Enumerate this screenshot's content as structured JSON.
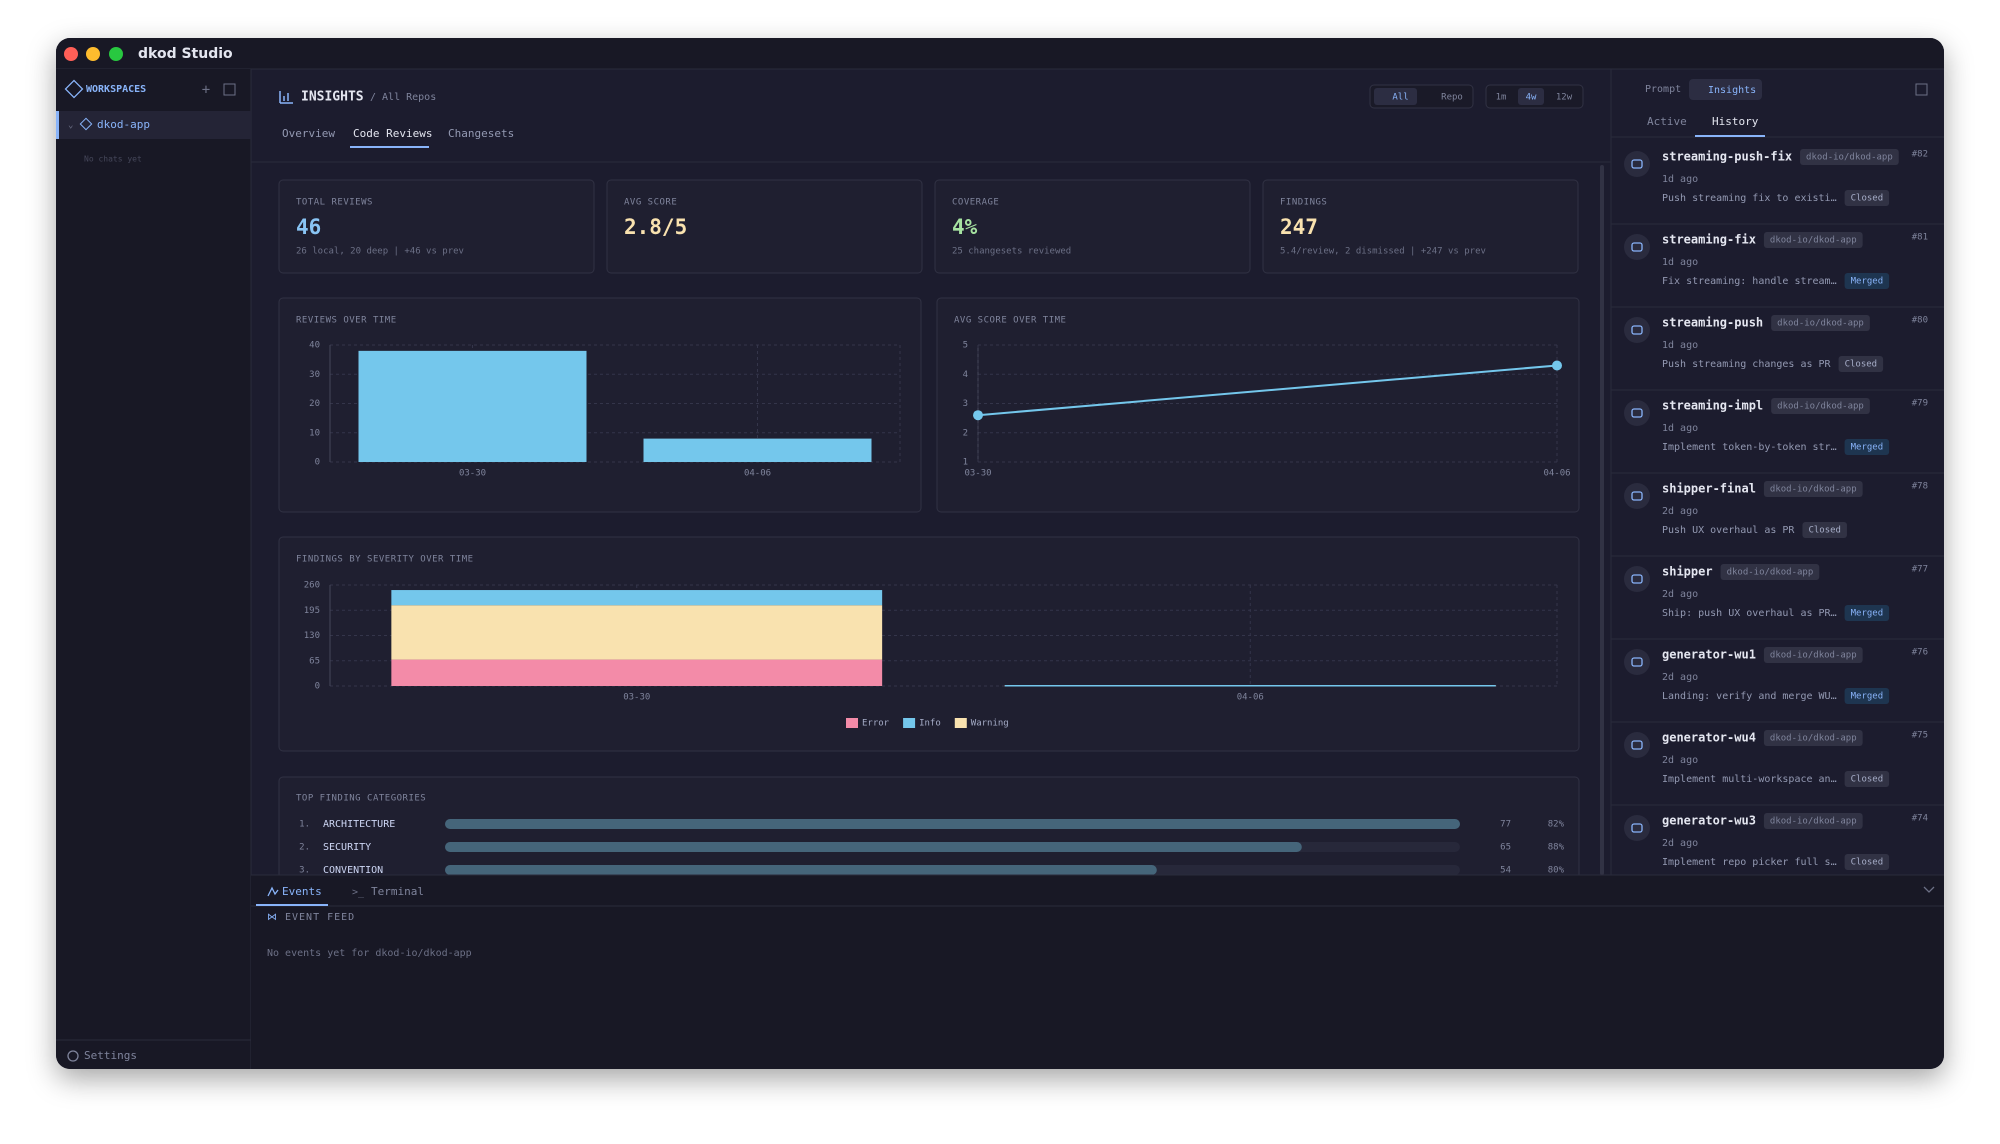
{
  "app": {
    "title": "dkod Studio"
  },
  "sidebar": {
    "section": "WORKSPACES",
    "workspace": "dkod-app",
    "empty": "No chats yet",
    "settings": "Settings"
  },
  "header": {
    "title": "INSIGHTS",
    "scope": "/ All Repos",
    "filters": [
      "All",
      "Repo"
    ],
    "ranges": [
      "1m",
      "4w",
      "12w"
    ],
    "tabs": [
      "Overview",
      "Code Reviews",
      "Changesets"
    ]
  },
  "stats": [
    {
      "label": "TOTAL REVIEWS",
      "value": 46,
      "detail": "26 local, 20 deep | +46 vs prev",
      "color": "#89c4f4"
    },
    {
      "label": "AVG SCORE",
      "value": "2.8/5",
      "detail": "",
      "color": "#f9e2af"
    },
    {
      "label": "COVERAGE",
      "value": "4%",
      "detail": "25 changesets reviewed",
      "color": "#a6e3a1"
    },
    {
      "label": "FINDINGS",
      "value": 247,
      "detail": "5.4/review, 2 dismissed | +247 vs prev",
      "color": "#f9e2af"
    }
  ],
  "charts": {
    "reviews": {
      "type": "bar",
      "title": "REVIEWS OVER TIME",
      "categories": [
        "03-30",
        "04-06"
      ],
      "values": [
        38,
        8
      ],
      "color": "#74c7ec",
      "ylim": [
        0,
        40
      ],
      "yticks": [
        0,
        10,
        20,
        30,
        40
      ]
    },
    "score": {
      "type": "line",
      "title": "AVG SCORE OVER TIME",
      "categories": [
        "03-30",
        "04-06"
      ],
      "values": [
        2.6,
        4.3
      ],
      "color": "#74c7ec",
      "ylim": [
        1,
        5
      ],
      "yticks": [
        1,
        2,
        3,
        4,
        5
      ]
    },
    "severity": {
      "type": "stacked_bar",
      "title": "FINDINGS BY SEVERITY OVER TIME",
      "categories": [
        "03-30",
        "04-06"
      ],
      "series": [
        {
          "name": "Error",
          "color": "#f38ba8",
          "values": [
            68,
            0
          ]
        },
        {
          "name": "Warning",
          "color": "#f9e2af",
          "values": [
            140,
            0
          ]
        },
        {
          "name": "Info",
          "color": "#74c7ec",
          "values": [
            39,
            0
          ]
        }
      ],
      "ylim": [
        0,
        260
      ],
      "yticks": [
        0,
        65,
        130,
        195,
        260
      ]
    },
    "top_categories": {
      "type": "hbar",
      "title": "TOP FINDING CATEGORIES",
      "color": "#45657a",
      "rows": [
        {
          "rank": "1.",
          "name": "ARCHITECTURE",
          "count": 77,
          "percent": "82%"
        },
        {
          "rank": "2.",
          "name": "SECURITY",
          "count": 65,
          "percent": "88%"
        },
        {
          "rank": "3.",
          "name": "CONVENTION",
          "count": 54,
          "percent": "80%"
        }
      ]
    }
  },
  "bottom": {
    "tabs": [
      "Events",
      "Terminal"
    ],
    "feed_title": "EVENT FEED",
    "empty": "No events yet for dkod-io/dkod-app"
  },
  "panel": {
    "tabs": [
      "Prompt",
      "Insights"
    ],
    "subtabs": [
      "Active",
      "History"
    ],
    "items": [
      {
        "name": "streaming-push-fix",
        "repo": "dkod-io/dkod-app",
        "time": "1d ago",
        "number": "#82",
        "description": "Push streaming fix to existi…",
        "status": "Closed"
      },
      {
        "name": "streaming-fix",
        "repo": "dkod-io/dkod-app",
        "time": "1d ago",
        "number": "#81",
        "description": "Fix streaming: handle stream…",
        "status": "Merged"
      },
      {
        "name": "streaming-push",
        "repo": "dkod-io/dkod-app",
        "time": "1d ago",
        "number": "#80",
        "description": "Push streaming changes as PR",
        "status": "Closed"
      },
      {
        "name": "streaming-impl",
        "repo": "dkod-io/dkod-app",
        "time": "1d ago",
        "number": "#79",
        "description": "Implement token-by-token str…",
        "status": "Merged"
      },
      {
        "name": "shipper-final",
        "repo": "dkod-io/dkod-app",
        "time": "2d ago",
        "number": "#78",
        "description": "Push UX overhaul as PR",
        "status": "Closed"
      },
      {
        "name": "shipper",
        "repo": "dkod-io/dkod-app",
        "time": "2d ago",
        "number": "#77",
        "description": "Ship: push UX overhaul as PR…",
        "status": "Merged"
      },
      {
        "name": "generator-wu1",
        "repo": "dkod-io/dkod-app",
        "time": "2d ago",
        "number": "#76",
        "description": "Landing: verify and merge WU…",
        "status": "Merged"
      },
      {
        "name": "generator-wu4",
        "repo": "dkod-io/dkod-app",
        "time": "2d ago",
        "number": "#75",
        "description": "Implement multi-workspace an…",
        "status": "Closed"
      },
      {
        "name": "generator-wu3",
        "repo": "dkod-io/dkod-app",
        "time": "2d ago",
        "number": "#74",
        "description": "Implement repo picker full s…",
        "status": "Closed"
      }
    ]
  }
}
